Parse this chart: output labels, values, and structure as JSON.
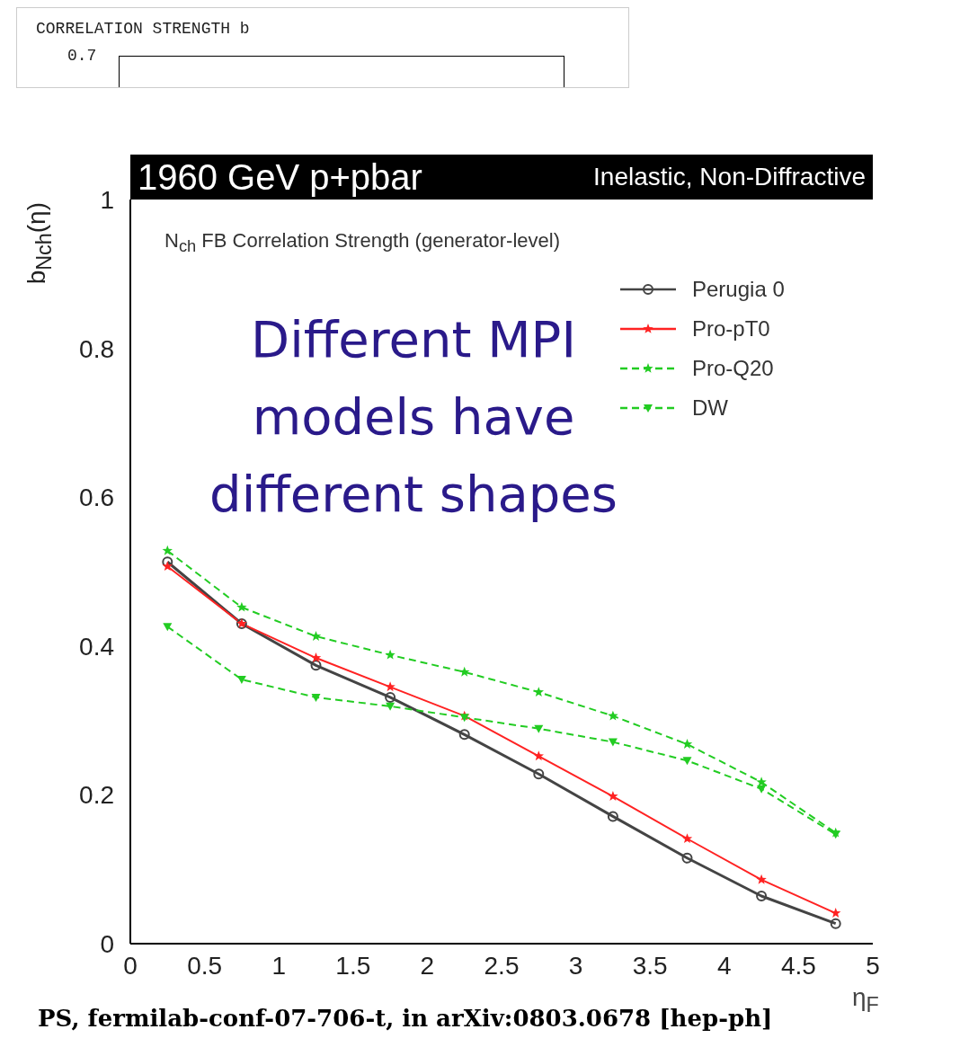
{
  "chart_data": {
    "type": "line",
    "title": "1960 GeV p+pbar",
    "subtitle": "Inelastic, Non-Diffractive",
    "xlabel": "η$_{F}$",
    "ylabel": "b$_{Nch}$(η)",
    "x": [
      0.25,
      0.75,
      1.25,
      1.75,
      2.25,
      2.75,
      3.25,
      3.75,
      4.25,
      4.75
    ],
    "series": [
      {
        "name": "Perugia 0",
        "color": "#444444",
        "marker": "circle",
        "line_style": "solid",
        "values": [
          0.513,
          0.43,
          0.374,
          0.331,
          0.281,
          0.228,
          0.171,
          0.115,
          0.064,
          0.027
        ]
      },
      {
        "name": "Pro-pT0",
        "color": "#ff2222",
        "marker": "star",
        "line_style": "solid",
        "values": [
          0.507,
          0.43,
          0.384,
          0.345,
          0.306,
          0.252,
          0.198,
          0.141,
          0.086,
          0.041
        ]
      },
      {
        "name": "Pro-Q20",
        "color": "#22cc22",
        "marker": "star",
        "line_style": "dashed",
        "values": [
          0.528,
          0.452,
          0.413,
          0.388,
          0.365,
          0.338,
          0.306,
          0.268,
          0.217,
          0.149
        ]
      },
      {
        "name": "DW",
        "color": "#22cc22",
        "marker": "triangle",
        "line_style": "dashed",
        "values": [
          0.426,
          0.355,
          0.331,
          0.319,
          0.304,
          0.289,
          0.271,
          0.246,
          0.208,
          0.147
        ]
      }
    ],
    "xlim": [
      0,
      5
    ],
    "xticks": [
      0,
      0.5,
      1,
      1.5,
      2,
      2.5,
      3,
      3.5,
      4,
      4.5,
      5
    ],
    "ylim": [
      0,
      1
    ],
    "yticks": [
      0,
      0.2,
      0.4,
      0.6,
      0.8,
      1
    ],
    "grid": false,
    "legend": "top right",
    "annotations": [
      "CORRELATION STRENGTH b",
      "0.7",
      "N$_{ch}$ FB Correlation Strength (generator-level)",
      "Different MPI models have different shapes",
      "PS, fermilab-conf-07-706-t, in arXiv:0803.0678 [hep-ph]"
    ]
  }
}
